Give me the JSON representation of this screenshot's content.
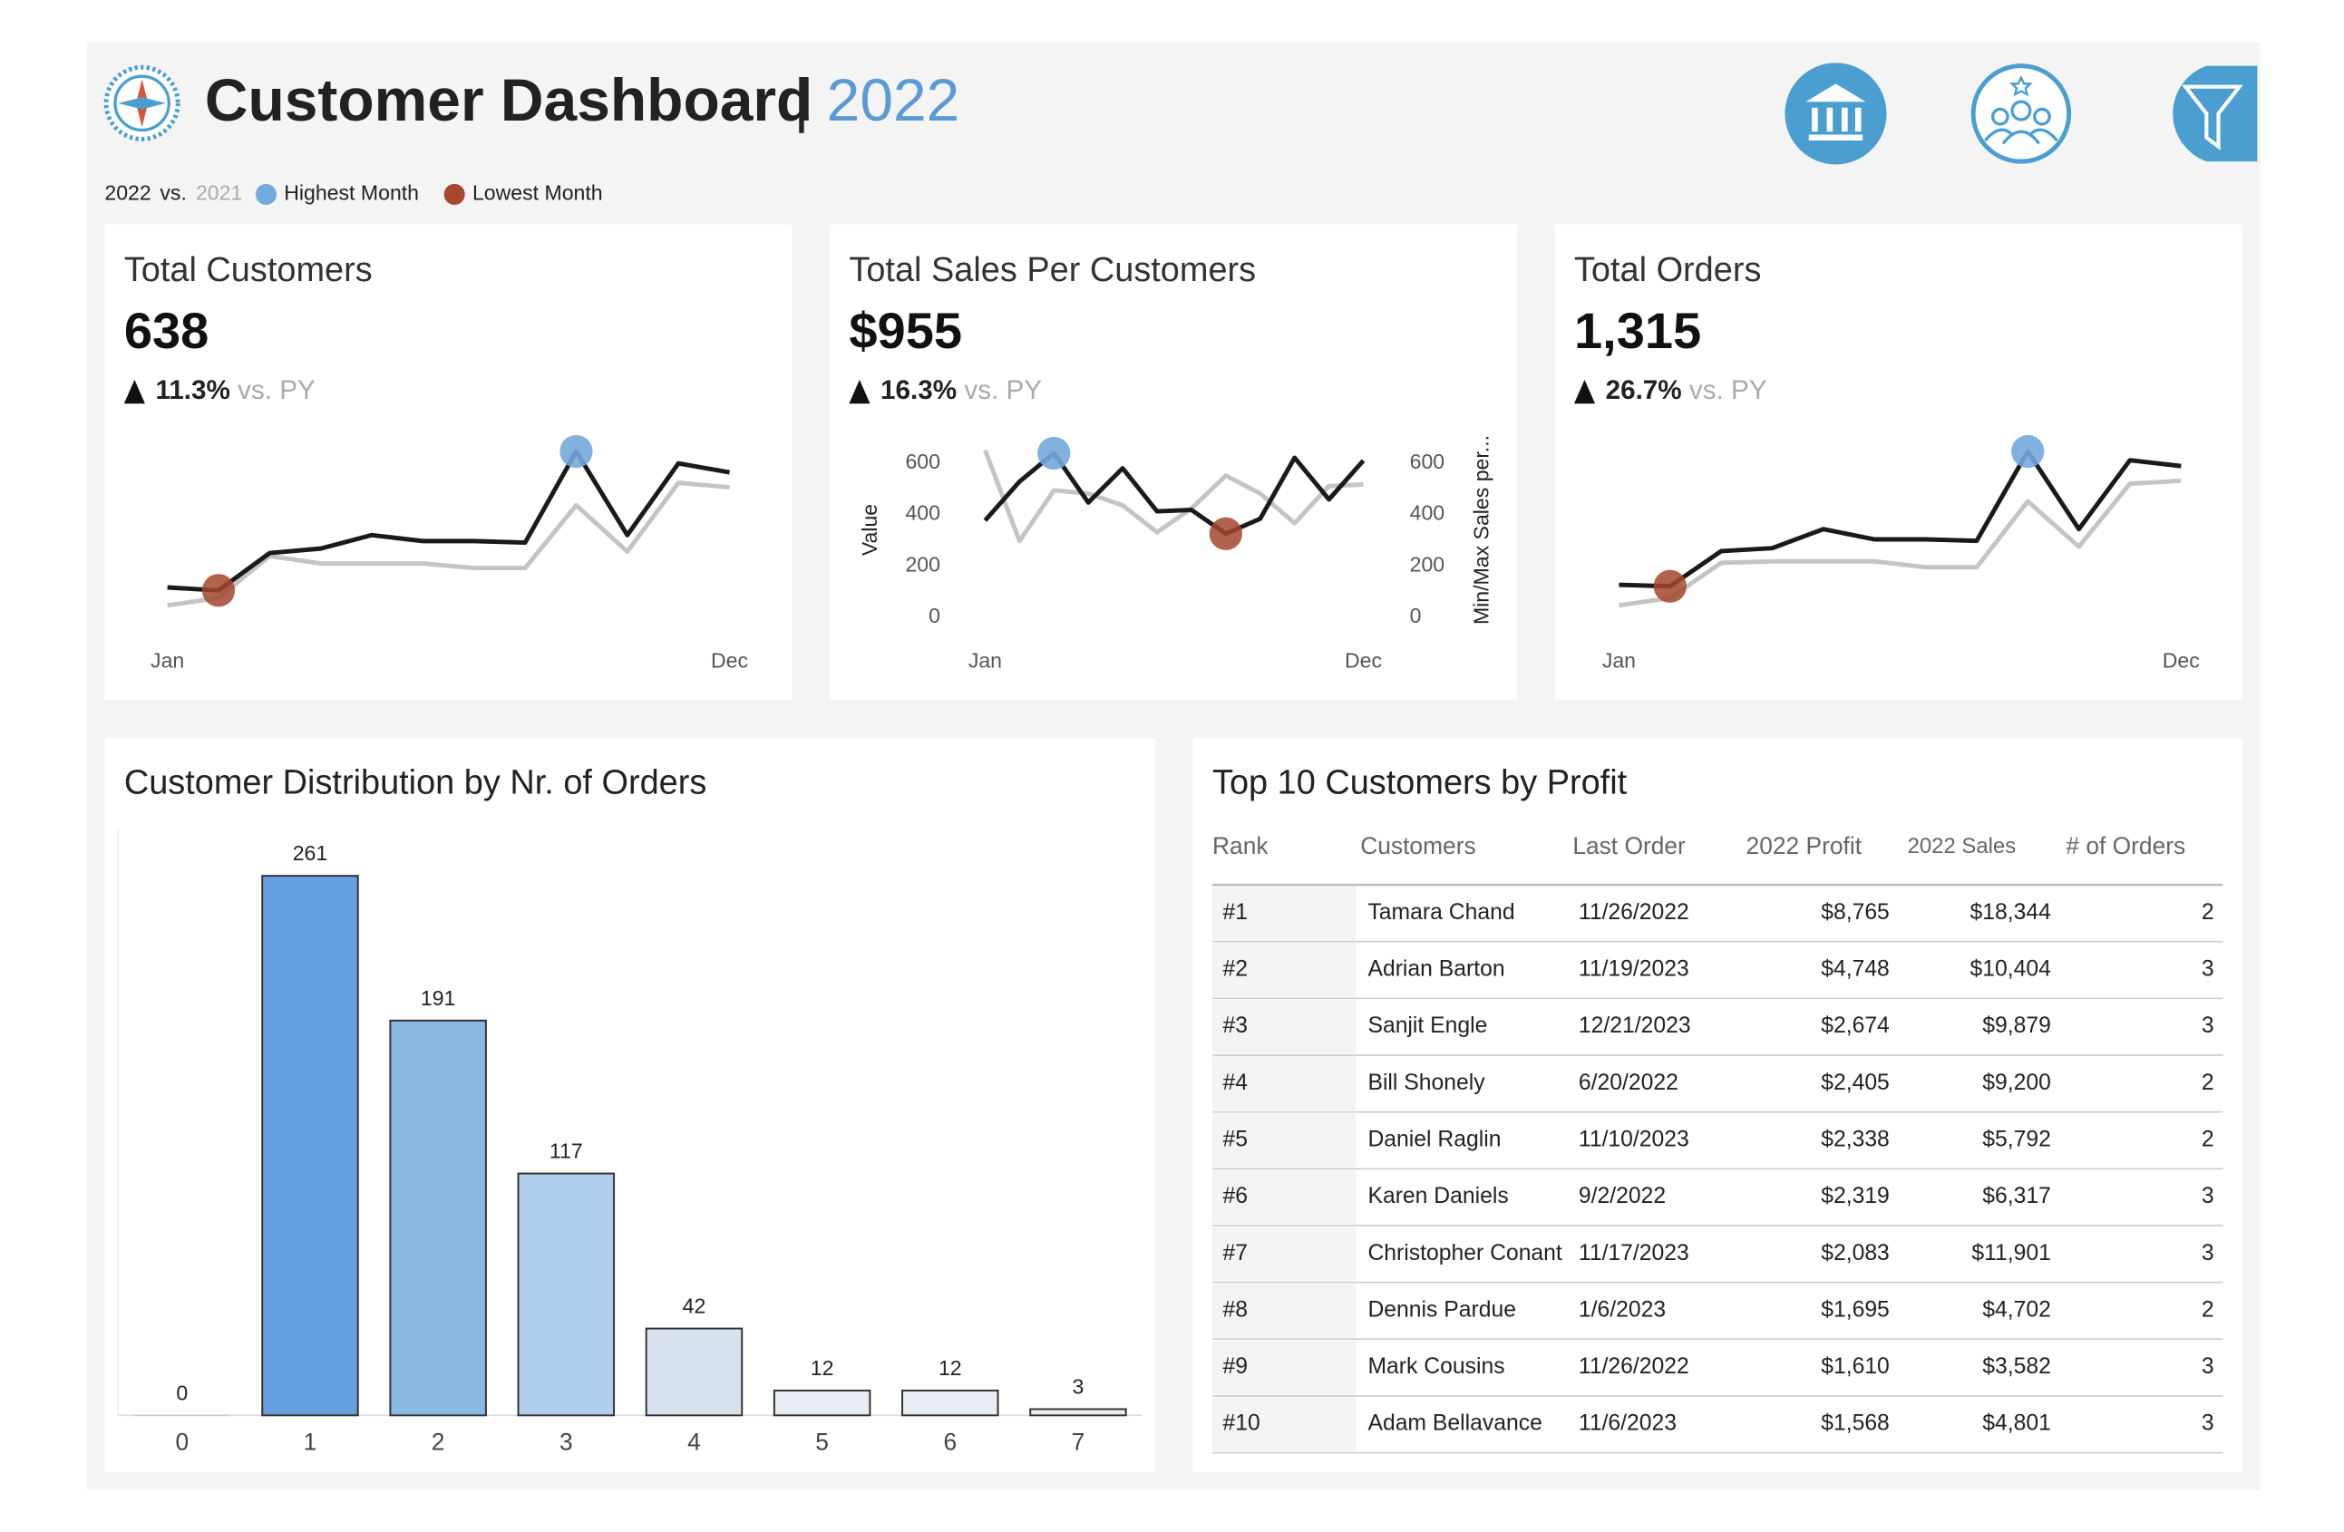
{
  "header": {
    "title": "Customer Dashboard",
    "separator": "|",
    "year": "2022"
  },
  "legend": {
    "vs": "vs.",
    "highest": "Highest Month",
    "lowest": "Lowest Month",
    "highest_color": "#74a9dc",
    "lowest_color": "#a5482f"
  },
  "kpis": [
    {
      "title": "Total Customers",
      "value": "638",
      "change": "11.3%",
      "comparison": "vs. PY"
    },
    {
      "title": "Total Sales Per Customers",
      "value": "$955",
      "change": "16.3%",
      "comparison": "vs. PY"
    },
    {
      "title": "Total Orders",
      "value": "1,315",
      "change": "26.7%",
      "comparison": "vs. PY"
    }
  ],
  "chart_data": [
    {
      "type": "line",
      "categories": [
        "Jan",
        null,
        null,
        null,
        null,
        null,
        null,
        null,
        null,
        null,
        null,
        "Dec"
      ],
      "series": [
        {
          "name": "2022",
          "color": "#1a1a1a",
          "values": [
            37,
            35,
            60,
            63,
            72,
            68,
            68,
            67,
            128,
            72,
            120,
            114
          ]
        },
        {
          "name": "2021",
          "color": "#c4c4c4",
          "values": [
            25,
            30,
            58,
            53,
            53,
            53,
            50,
            50,
            92,
            61,
            107,
            104
          ]
        }
      ]
    },
    {
      "type": "line",
      "categories": [
        "Jan",
        null,
        null,
        null,
        null,
        null,
        null,
        null,
        null,
        null,
        null,
        "Dec"
      ],
      "ylabel": "Value",
      "y2label": "Min/Max Sales per...",
      "ylim": [
        0,
        680
      ],
      "yticks": [
        0,
        200,
        400,
        600
      ],
      "y2lim": [
        0,
        680
      ],
      "y2ticks": [
        0,
        200,
        400,
        600
      ],
      "series": [
        {
          "name": "2022",
          "color": "#1a1a1a",
          "values": [
            405,
            542,
            642,
            468,
            589,
            437,
            442,
            358,
            411,
            626,
            479,
            616
          ]
        },
        {
          "name": "2021",
          "color": "#c4c4c4",
          "axis": "y2",
          "values": [
            653,
            332,
            511,
            500,
            458,
            363,
            447,
            563,
            500,
            395,
            526,
            532
          ]
        }
      ]
    },
    {
      "type": "line",
      "categories": [
        "Jan",
        null,
        null,
        null,
        null,
        null,
        null,
        null,
        null,
        null,
        null,
        "Dec"
      ],
      "series": [
        {
          "name": "2022",
          "color": "#1a1a1a",
          "values": [
            36,
            35,
            59,
            61,
            74,
            67,
            67,
            66,
            127,
            74,
            121,
            117
          ]
        },
        {
          "name": "2021",
          "color": "#c4c4c4",
          "values": [
            22,
            27,
            51,
            52,
            52,
            52,
            48,
            48,
            93,
            62,
            105,
            107
          ]
        }
      ]
    },
    {
      "type": "bar",
      "title": "Customer Distribution by Nr. of Orders",
      "categories": [
        "0",
        "1",
        "2",
        "3",
        "4",
        "5",
        "6",
        "7"
      ],
      "values": [
        0,
        261,
        191,
        117,
        42,
        12,
        12,
        3
      ],
      "colors": [
        "#ffffff",
        "#64a0e0",
        "#8ab8e4",
        "#b1cfec",
        "#d7e2ee",
        "#e8edf3",
        "#e8edf3",
        "#e8edf3"
      ]
    }
  ],
  "table": {
    "title": "Top 10 Customers by Profit",
    "columns": [
      "Rank",
      "Customers",
      "Last Order",
      "2022 Profit",
      "2022 Sales",
      "# of Orders"
    ],
    "rows": [
      [
        "#1",
        "Tamara Chand",
        "11/26/2022",
        "$8,765",
        "$18,344",
        "2"
      ],
      [
        "#2",
        "Adrian Barton",
        "11/19/2023",
        "$4,748",
        "$10,404",
        "3"
      ],
      [
        "#3",
        "Sanjit Engle",
        "12/21/2023",
        "$2,674",
        "$9,879",
        "3"
      ],
      [
        "#4",
        "Bill Shonely",
        "6/20/2022",
        "$2,405",
        "$9,200",
        "2"
      ],
      [
        "#5",
        "Daniel Raglin",
        "11/10/2023",
        "$2,338",
        "$5,792",
        "2"
      ],
      [
        "#6",
        "Karen Daniels",
        "9/2/2022",
        "$2,319",
        "$6,317",
        "3"
      ],
      [
        "#7",
        "Christopher Conant",
        "11/17/2023",
        "$2,083",
        "$11,901",
        "3"
      ],
      [
        "#8",
        "Dennis Pardue",
        "1/6/2023",
        "$1,695",
        "$4,702",
        "2"
      ],
      [
        "#9",
        "Mark Cousins",
        "11/26/2022",
        "$1,610",
        "$3,582",
        "3"
      ],
      [
        "#10",
        "Adam Bellavance",
        "11/6/2023",
        "$1,568",
        "$4,801",
        "3"
      ]
    ]
  }
}
